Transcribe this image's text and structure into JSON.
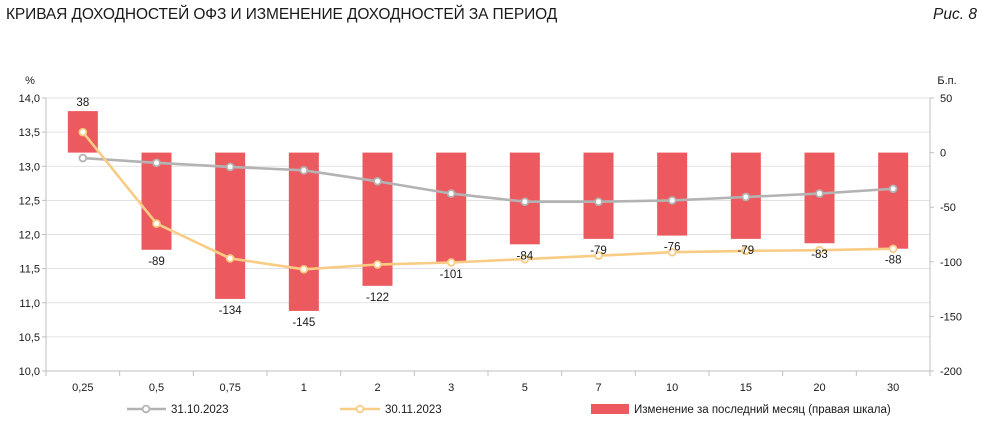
{
  "header": {
    "title": "КРИВАЯ ДОХОДНОСТЕЙ ОФЗ И ИЗМЕНЕНИЕ ДОХОДНОСТЕЙ ЗА ПЕРИОД",
    "figure_label": "Рис. 8"
  },
  "chart_data": {
    "type": "bar+line",
    "title": "КРИВАЯ ДОХОДНОСТЕЙ ОФЗ И ИЗМЕНЕНИЕ ДОХОДНОСТЕЙ ЗА ПЕРИОД",
    "ylabel_left": "%",
    "ylabel_right": "Б.п.",
    "ylim_left": [
      10.0,
      14.0
    ],
    "ylim_right": [
      -200,
      50
    ],
    "left_ticks": [
      "14,0",
      "13,5",
      "13,0",
      "12,5",
      "12,0",
      "11,5",
      "11,0",
      "10,5",
      "10,0"
    ],
    "left_tick_values": [
      14.0,
      13.5,
      13.0,
      12.5,
      12.0,
      11.5,
      11.0,
      10.5,
      10.0
    ],
    "right_ticks": [
      "50",
      "0",
      "-50",
      "-100",
      "-150",
      "-200"
    ],
    "right_tick_values": [
      50,
      0,
      -50,
      -100,
      -150,
      -200
    ],
    "categories": [
      "0,25",
      "0,5",
      "0,75",
      "1",
      "2",
      "3",
      "5",
      "7",
      "10",
      "15",
      "20",
      "30"
    ],
    "bar_series": {
      "name": "Изменение за последний месяц (правая шкала)",
      "axis": "right",
      "color": "#ec5a5f",
      "values": [
        38,
        -89,
        -134,
        -145,
        -122,
        -101,
        -84,
        -79,
        -76,
        -79,
        -83,
        -88
      ],
      "labels": [
        "38",
        "-89",
        "-134",
        "-145",
        "-122",
        "-101",
        "-84",
        "-79",
        "-76",
        "-79",
        "-83",
        "-88"
      ]
    },
    "line_series": [
      {
        "name": "31.10.2023",
        "axis": "left",
        "color": "#b3b3b3",
        "values": [
          13.12,
          13.05,
          12.99,
          12.94,
          12.78,
          12.6,
          12.48,
          12.48,
          12.5,
          12.55,
          12.6,
          12.67
        ]
      },
      {
        "name": "30.11.2023",
        "axis": "left",
        "color": "#f8cc85",
        "values": [
          13.5,
          12.16,
          11.65,
          11.49,
          11.56,
          11.59,
          11.64,
          11.69,
          11.74,
          11.76,
          11.77,
          11.79
        ]
      }
    ],
    "legend_position": "bottom"
  }
}
